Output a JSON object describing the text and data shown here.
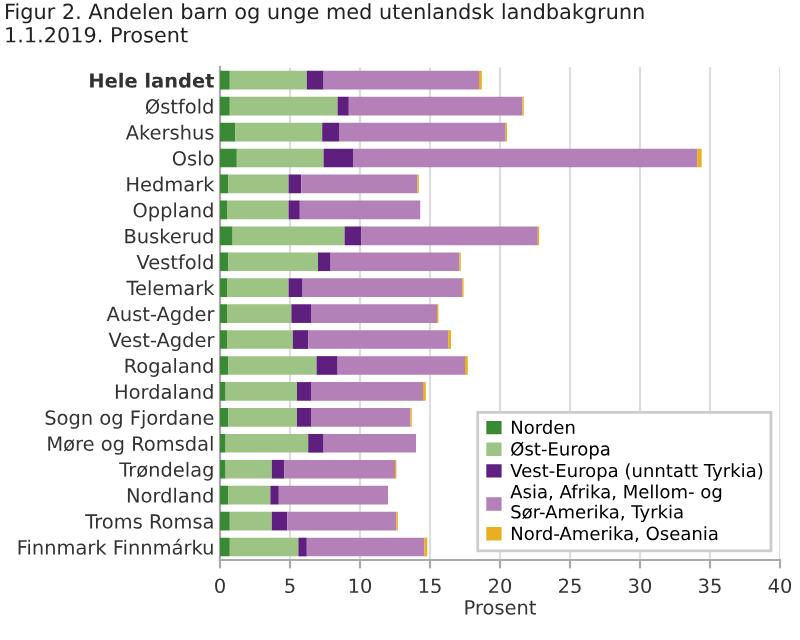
{
  "chart_data": {
    "type": "bar",
    "orientation": "horizontal",
    "stacked": true,
    "title": "Figur 2. Andelen barn og unge med utenlandsk landbakgrunn\n1.1.2019. Prosent",
    "xlabel": "Prosent",
    "categories": [
      "Hele landet",
      "Østfold",
      "Akershus",
      "Oslo",
      "Hedmark",
      "Oppland",
      "Buskerud",
      "Vestfold",
      "Telemark",
      "Aust-Agder",
      "Vest-Agder",
      "Rogaland",
      "Hordaland",
      "Sogn og Fjordane",
      "Møre og Romsdal",
      "Trøndelag",
      "Nordland",
      "Troms Romsa",
      "Finnmark Finnmárku"
    ],
    "series": [
      {
        "name": "Norden",
        "color": "#3a8a35",
        "values": [
          0.7,
          0.7,
          1.1,
          1.2,
          0.6,
          0.5,
          0.9,
          0.6,
          0.5,
          0.5,
          0.5,
          0.6,
          0.4,
          0.6,
          0.4,
          0.4,
          0.6,
          0.7,
          0.7
        ]
      },
      {
        "name": "Øst-Europa",
        "color": "#9dc484",
        "values": [
          5.5,
          7.7,
          6.2,
          6.2,
          4.3,
          4.4,
          8.0,
          6.4,
          4.4,
          4.6,
          4.7,
          6.3,
          5.1,
          4.9,
          5.9,
          3.3,
          3.0,
          3.0,
          4.9
        ]
      },
      {
        "name": "Vest-Europa (unntatt Tyrkia)",
        "color": "#5e1f7e",
        "values": [
          1.2,
          0.8,
          1.2,
          2.1,
          0.9,
          0.8,
          1.2,
          0.9,
          1.0,
          1.4,
          1.1,
          1.5,
          1.0,
          1.0,
          1.1,
          0.9,
          0.6,
          1.1,
          0.6
        ]
      },
      {
        "name": "Asia, Afrika, Mellom- og\nSør-Amerika, Tyrkia",
        "color": "#b380b8",
        "values": [
          11.1,
          12.4,
          11.9,
          24.6,
          8.3,
          8.6,
          12.6,
          9.2,
          11.4,
          9.0,
          10.0,
          9.1,
          8.0,
          7.1,
          6.6,
          7.9,
          7.8,
          7.8,
          8.4
        ]
      },
      {
        "name": "Nord-Amerika, Oseania",
        "color": "#e8b01e",
        "values": [
          0.2,
          0.1,
          0.1,
          0.3,
          0.1,
          null,
          0.1,
          0.1,
          0.1,
          0.1,
          0.2,
          0.2,
          0.2,
          0.1,
          null,
          0.1,
          null,
          0.1,
          0.2
        ]
      }
    ],
    "xlim": [
      0,
      40
    ],
    "xticks": [
      0,
      5,
      10,
      15,
      20,
      25,
      30,
      35,
      40
    ],
    "grid": "x",
    "legend": "bottom right"
  }
}
